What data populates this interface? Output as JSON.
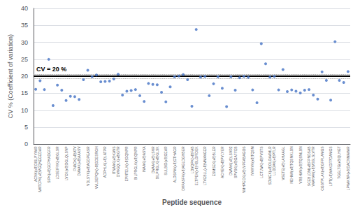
{
  "chart_data": {
    "type": "scatter",
    "xlabel": "Peptide sequence",
    "ylabel": "CV % (Coefficient of variation)",
    "categories": [
      "ACNK(+8)DISLPYVAR",
      "IWITCPK(+8)VGQNEGEDAR",
      null,
      "SIPK(+8)GCPHADGFR",
      null,
      "LDSEIFHK(+8)GLSR",
      null,
      "LVCK(+8)DGLQLSVP",
      null,
      "FNADK(+8)ATV",
      "DVAAK(+8)AAASV",
      null,
      "VDLSYK(+8)AGDPEASR",
      null,
      "VVLSEPQK(+8)GDESRGH",
      null,
      "ADPHLK(+8)LATPR",
      null,
      "ITNAAK(+8)KAVS",
      "DVVGQLK(+8)GTR",
      null,
      "EPNTELK(+8)GQNPR",
      null,
      "BILPRGLK(+8)QNPR",
      null,
      "INAAK(+8)ASYA",
      null,
      "DVAAK(+8)LSVR",
      "BILPRGLK(+8)GLSK",
      null,
      "SULBID(+8)GEAR",
      null,
      "ALDSINK(+8)GTHAGR",
      null,
      "DVPASFK(+8)AGLDGHBER",
      null,
      "LDVQPK(+8)FAB",
      "ELTPEK(+8)HSLGFIDEK",
      null,
      "LTVEBLL(+8)MMAVGER",
      null,
      "ESMSEK(+8)BLER",
      null,
      "ACHEK(+8)PVLYER",
      null,
      "DVAAK(+8)LSVR2",
      "SPVSK(+8)GAFFEB",
      null,
      "VMHPECK(+8)LVPFABAGOS",
      null,
      "IVVHVK(+8)TQSM",
      null,
      "LCTLWK(+8)PVSTS",
      null,
      "SDWEK(+8)OLOAAMLR",
      "LLODAK(+8)PTLR",
      null,
      "VSETE(+8)LAHAAGL",
      null,
      "NEHAV(+8)TQSMKLBN",
      null,
      "VRBHAV(+8)TQSMLBN",
      null,
      "SCEBLDM(+8)FPNDSAB",
      "VVAHAK(+8)VSSLSLVTR",
      null,
      "CGSTPLAK(+8)GFPLAMGS",
      null,
      "LPT(+8)AAKGFPDAMGS",
      null,
      "TGGLTG(+8)QLHGT",
      null,
      "LPVAKNP(+8)DACNMAVAR"
    ],
    "values": [
      16.2,
      18.7,
      16.1,
      25.0,
      11.4,
      17.4,
      15.9,
      12.9,
      14.1,
      14.0,
      13.2,
      19.0,
      21.8,
      19.9,
      20.4,
      18.4,
      18.5,
      18.6,
      19.2,
      20.6,
      14.5,
      15.6,
      15.8,
      16.1,
      14.3,
      12.6,
      17.9,
      17.6,
      17.5,
      15.3,
      12.5,
      16.9,
      19.9,
      20.1,
      20.5,
      19.0,
      11.2,
      33.8,
      19.8,
      20.0,
      14.3,
      17.8,
      19.9,
      16.5,
      11.1,
      19.9,
      15.9,
      19.6,
      20.0,
      19.7,
      16.0,
      12.2,
      29.6,
      23.7,
      19.8,
      20.0,
      16.0,
      22.0,
      15.5,
      16.0,
      15.6,
      15.1,
      15.9,
      16.1,
      14.5,
      13.3,
      21.3,
      18.8,
      13.0,
      30.2,
      18.8,
      18.2,
      21.4
    ],
    "color": "#4472C4",
    "ylim": [
      0,
      40
    ],
    "yticks": [
      0,
      5,
      10,
      15,
      20,
      25,
      30,
      35,
      40
    ],
    "grid": true,
    "reference_lines": [
      {
        "value": 20,
        "color": "black",
        "line_style": "solid",
        "label": "CV = 20 %"
      },
      {
        "value": 20.6,
        "color": "gray",
        "line_style": "dotted"
      },
      {
        "value": 19.4,
        "color": "gray",
        "line_style": "dotted"
      }
    ]
  }
}
